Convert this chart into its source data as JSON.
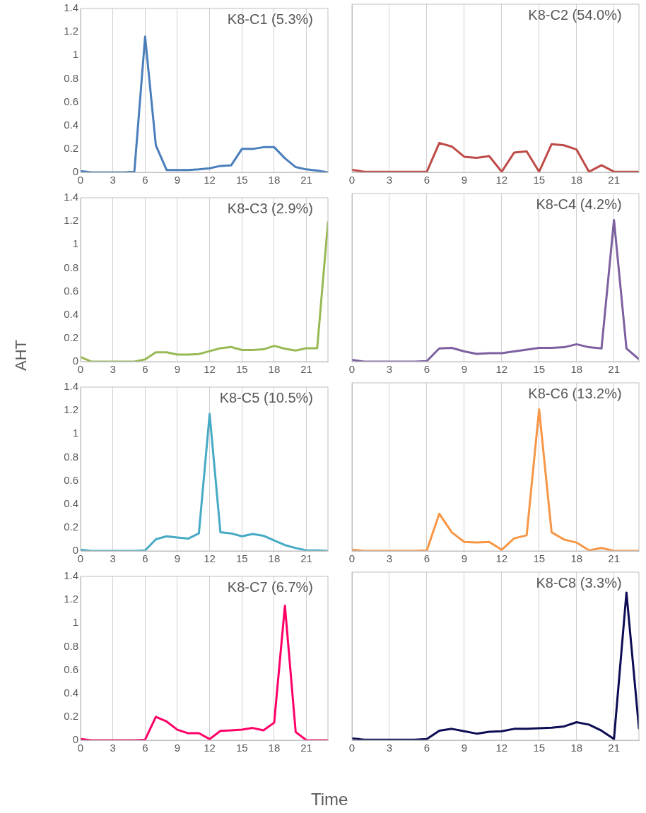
{
  "chart_data": [
    {
      "type": "line",
      "title": "K8-C1 (5.3%)",
      "x": [
        0,
        1,
        2,
        3,
        4,
        5,
        6,
        7,
        8,
        9,
        10,
        11,
        12,
        13,
        14,
        15,
        16,
        17,
        18,
        19,
        20,
        21,
        22,
        23
      ],
      "series": [
        {
          "color": "#4a7ebb",
          "values": [
            0.01,
            0,
            0,
            0,
            0,
            0.005,
            1.16,
            0.23,
            0.02,
            0.02,
            0.02,
            0.025,
            0.035,
            0.055,
            0.06,
            0.2,
            0.2,
            0.215,
            0.215,
            0.12,
            0.045,
            0.025,
            0.015,
            0
          ]
        }
      ],
      "xlim": [
        0,
        23
      ],
      "xticks": [
        0,
        3,
        6,
        9,
        12,
        15,
        18,
        21
      ],
      "ylim": [
        0,
        1.4
      ],
      "yticks": [
        0,
        0.2,
        0.4,
        0.6,
        0.8,
        1,
        1.2,
        1.4
      ],
      "grid": "x",
      "marker": "none",
      "line_style": "solid"
    },
    {
      "type": "line",
      "title": "K8-C2 (54.0%)",
      "x": [
        0,
        1,
        2,
        3,
        4,
        5,
        6,
        7,
        8,
        9,
        10,
        11,
        12,
        13,
        14,
        15,
        16,
        17,
        18,
        19,
        20,
        21,
        22,
        23
      ],
      "series": [
        {
          "color": "#be4b48",
          "values": [
            0.02,
            0.005,
            0.005,
            0.005,
            0.005,
            0.005,
            0.005,
            0.245,
            0.215,
            0.13,
            0.12,
            0.135,
            0.005,
            0.165,
            0.175,
            0.005,
            0.235,
            0.225,
            0.19,
            0.005,
            0.06,
            0.005,
            0.005,
            0.005
          ]
        }
      ],
      "xlim": [
        0,
        23
      ],
      "xticks": [
        0,
        3,
        6,
        9,
        12,
        15,
        18,
        21
      ],
      "ylim": [
        0,
        1.4
      ],
      "yticks": [
        0,
        0.2,
        0.4,
        0.6,
        0.8,
        1,
        1.2,
        1.4
      ],
      "grid": "x",
      "marker": "none",
      "line_style": "solid",
      "tick_labels": "x"
    },
    {
      "type": "line",
      "title": "K8-C3 (2.9%)",
      "ylabel": "AHT",
      "x": [
        0,
        1,
        2,
        3,
        4,
        5,
        6,
        7,
        8,
        9,
        10,
        11,
        12,
        13,
        14,
        15,
        16,
        17,
        18,
        19,
        20,
        21,
        22,
        23
      ],
      "series": [
        {
          "color": "#98b954",
          "values": [
            0.04,
            0,
            0,
            0,
            0,
            0,
            0.02,
            0.08,
            0.08,
            0.06,
            0.06,
            0.065,
            0.09,
            0.115,
            0.125,
            0.1,
            0.1,
            0.105,
            0.135,
            0.11,
            0.095,
            0.115,
            0.115,
            1.19
          ]
        }
      ],
      "xlim": [
        0,
        23
      ],
      "xticks": [
        0,
        3,
        6,
        9,
        12,
        15,
        18,
        21
      ],
      "ylim": [
        0,
        1.4
      ],
      "yticks": [
        0,
        0.2,
        0.4,
        0.6,
        0.8,
        1,
        1.2,
        1.4
      ],
      "grid": "x",
      "marker": "none",
      "line_style": "solid"
    },
    {
      "type": "line",
      "title": "K8-C4 (4.2%)",
      "x": [
        0,
        1,
        2,
        3,
        4,
        5,
        6,
        7,
        8,
        9,
        10,
        11,
        12,
        13,
        14,
        15,
        16,
        17,
        18,
        19,
        20,
        21,
        22,
        23
      ],
      "series": [
        {
          "color": "#7d60a0",
          "values": [
            0.015,
            0,
            0,
            0,
            0,
            0,
            0.005,
            0.11,
            0.115,
            0.085,
            0.065,
            0.07,
            0.07,
            0.085,
            0.1,
            0.115,
            0.115,
            0.12,
            0.145,
            0.12,
            0.11,
            1.18,
            0.11,
            0.02
          ]
        }
      ],
      "xlim": [
        0,
        23
      ],
      "xticks": [
        0,
        3,
        6,
        9,
        12,
        15,
        18,
        21
      ],
      "ylim": [
        0,
        1.4
      ],
      "yticks": [
        0,
        0.2,
        0.4,
        0.6,
        0.8,
        1,
        1.2,
        1.4
      ],
      "grid": "x",
      "marker": "none",
      "line_style": "solid",
      "tick_labels": "x"
    },
    {
      "type": "line",
      "title": "K8-C5 (10.5%)",
      "x": [
        0,
        1,
        2,
        3,
        4,
        5,
        6,
        7,
        8,
        9,
        10,
        11,
        12,
        13,
        14,
        15,
        16,
        17,
        18,
        19,
        20,
        21,
        22,
        23
      ],
      "series": [
        {
          "color": "#46aac5",
          "values": [
            0.01,
            0,
            0,
            0,
            0,
            0,
            0.005,
            0.1,
            0.125,
            0.115,
            0.105,
            0.15,
            1.17,
            0.16,
            0.15,
            0.125,
            0.145,
            0.13,
            0.09,
            0.05,
            0.025,
            0.005,
            0.005,
            0
          ]
        }
      ],
      "xlim": [
        0,
        23
      ],
      "xticks": [
        0,
        3,
        6,
        9,
        12,
        15,
        18,
        21
      ],
      "ylim": [
        0,
        1.4
      ],
      "yticks": [
        0,
        0.2,
        0.4,
        0.6,
        0.8,
        1,
        1.2,
        1.4
      ],
      "grid": "x",
      "marker": "none",
      "line_style": "solid"
    },
    {
      "type": "line",
      "title": "K8-C6 (13.2%)",
      "x": [
        0,
        1,
        2,
        3,
        4,
        5,
        6,
        7,
        8,
        9,
        10,
        11,
        12,
        13,
        14,
        15,
        16,
        17,
        18,
        19,
        20,
        21,
        22,
        23
      ],
      "series": [
        {
          "color": "#f79646",
          "values": [
            0.01,
            0,
            0,
            0,
            0,
            0,
            0.005,
            0.31,
            0.155,
            0.075,
            0.07,
            0.075,
            0.01,
            0.105,
            0.13,
            1.18,
            0.155,
            0.095,
            0.07,
            0.005,
            0.025,
            0,
            0,
            0
          ]
        }
      ],
      "xlim": [
        0,
        23
      ],
      "xticks": [
        0,
        3,
        6,
        9,
        12,
        15,
        18,
        21
      ],
      "ylim": [
        0,
        1.4
      ],
      "yticks": [
        0,
        0.2,
        0.4,
        0.6,
        0.8,
        1,
        1.2,
        1.4
      ],
      "grid": "x",
      "marker": "none",
      "line_style": "solid",
      "tick_labels": "x"
    },
    {
      "type": "line",
      "title": "K8-C7 (6.7%)",
      "xlabel": "Time",
      "x": [
        0,
        1,
        2,
        3,
        4,
        5,
        6,
        7,
        8,
        9,
        10,
        11,
        12,
        13,
        14,
        15,
        16,
        17,
        18,
        19,
        20,
        21,
        22,
        23
      ],
      "series": [
        {
          "color": "#ff0066",
          "values": [
            0.01,
            0,
            0,
            0,
            0,
            0,
            0.005,
            0.2,
            0.16,
            0.09,
            0.06,
            0.06,
            0.01,
            0.08,
            0.085,
            0.09,
            0.105,
            0.085,
            0.15,
            1.15,
            0.07,
            0,
            0,
            0
          ]
        }
      ],
      "xlim": [
        0,
        23
      ],
      "xticks": [
        0,
        3,
        6,
        9,
        12,
        15,
        18,
        21
      ],
      "ylim": [
        0,
        1.4
      ],
      "yticks": [
        0,
        0.2,
        0.4,
        0.6,
        0.8,
        1,
        1.2,
        1.4
      ],
      "grid": "x",
      "marker": "none",
      "line_style": "solid"
    },
    {
      "type": "line",
      "title": "K8-C8 (3.3%)",
      "x": [
        0,
        1,
        2,
        3,
        4,
        5,
        6,
        7,
        8,
        9,
        10,
        11,
        12,
        13,
        14,
        15,
        16,
        17,
        18,
        19,
        20,
        21,
        22,
        23
      ],
      "series": [
        {
          "color": "#0d0d55",
          "values": [
            0.015,
            0.005,
            0.005,
            0.005,
            0.005,
            0.005,
            0.01,
            0.08,
            0.095,
            0.075,
            0.055,
            0.07,
            0.075,
            0.095,
            0.095,
            0.1,
            0.105,
            0.115,
            0.15,
            0.13,
            0.08,
            0.01,
            1.23,
            0.1
          ]
        }
      ],
      "xlim": [
        0,
        23
      ],
      "xticks": [
        0,
        3,
        6,
        9,
        12,
        15,
        18,
        21
      ],
      "ylim": [
        0,
        1.4
      ],
      "yticks": [
        0,
        0.2,
        0.4,
        0.6,
        0.8,
        1,
        1.2,
        1.4
      ],
      "grid": "x",
      "marker": "none",
      "line_style": "solid",
      "tick_labels": "x"
    }
  ]
}
